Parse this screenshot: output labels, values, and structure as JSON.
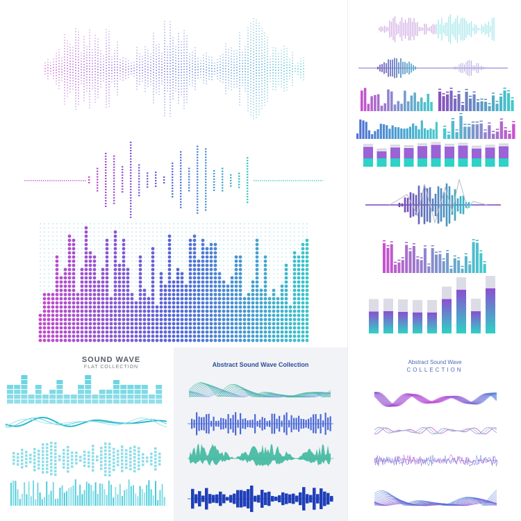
{
  "panels": {
    "flat": {
      "title": "SOUND WAVE",
      "subtitle": "FLAT COLLECTION"
    },
    "abstract_blue": {
      "title": "Abstract Sound Wave Collection"
    },
    "abstract_purple": {
      "title": "Abstract Sound Wave",
      "subtitle": "COLLECTION"
    }
  },
  "colors": {
    "purple": "#c23fc9",
    "violet": "#7b3fb5",
    "blue": "#3d5fd0",
    "teal": "#2ec4c6",
    "cyan": "#3fd1e2",
    "navy": "#1f3fb8",
    "sea": "#3fb8a0",
    "light_cyan": "#7fd9e6"
  }
}
